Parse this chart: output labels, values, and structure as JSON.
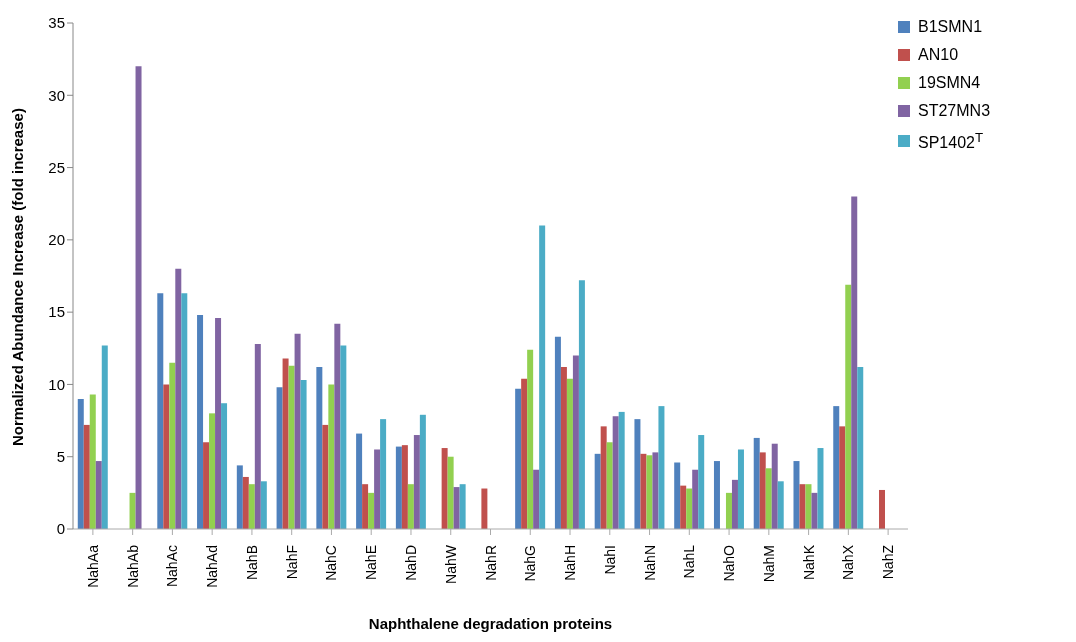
{
  "chart_data": {
    "type": "bar",
    "xlabel": "Naphthalene degradation proteins",
    "ylabel": "Normalized Abundance Increase (fold increase)",
    "categories": [
      "NahAa",
      "NahAb",
      "NahAc",
      "NahAd",
      "NahB",
      "NahF",
      "NahC",
      "NahE",
      "NahD",
      "NahW",
      "NahR",
      "NahG",
      "NahH",
      "NahI",
      "NahN",
      "NahL",
      "NahO",
      "NahM",
      "NahK",
      "NahX",
      "NahZ"
    ],
    "series": [
      {
        "name": "B1SMN1",
        "color": "#4f81bd",
        "values": [
          9.0,
          null,
          16.3,
          14.8,
          4.4,
          9.8,
          11.2,
          6.6,
          5.7,
          null,
          null,
          9.7,
          13.3,
          5.2,
          7.6,
          4.6,
          4.7,
          6.3,
          4.7,
          8.5,
          null
        ]
      },
      {
        "name": "AN10",
        "color": "#c0504d",
        "values": [
          7.2,
          null,
          10.0,
          6.0,
          3.6,
          11.8,
          7.2,
          3.1,
          5.8,
          5.6,
          2.8,
          10.4,
          11.2,
          7.1,
          5.2,
          3.0,
          null,
          5.3,
          3.1,
          7.1,
          2.7
        ]
      },
      {
        "name": "19SMN4",
        "color": "#92d050",
        "values": [
          9.3,
          2.5,
          11.5,
          8.0,
          3.1,
          11.3,
          10.0,
          2.5,
          3.1,
          5.0,
          null,
          12.4,
          10.4,
          6.0,
          5.1,
          2.8,
          2.5,
          4.2,
          3.1,
          16.9,
          null
        ]
      },
      {
        "name": "ST27MN3",
        "color": "#8064a2",
        "values": [
          4.7,
          32.0,
          18.0,
          14.6,
          12.8,
          13.5,
          14.2,
          5.5,
          6.5,
          2.9,
          null,
          4.1,
          12.0,
          7.8,
          5.3,
          4.1,
          3.4,
          5.9,
          2.5,
          23.0,
          null
        ]
      },
      {
        "name": "SP1402$^{T}$",
        "color": "#4bacc6",
        "values": [
          12.7,
          null,
          16.3,
          8.7,
          3.3,
          10.3,
          12.7,
          7.6,
          7.9,
          3.1,
          null,
          21.0,
          17.2,
          8.1,
          8.5,
          6.5,
          5.5,
          3.3,
          5.6,
          11.2,
          null
        ]
      }
    ],
    "ylim": [
      0,
      35
    ],
    "yticks": [
      0,
      5,
      10,
      15,
      20,
      25,
      30,
      35
    ],
    "grid": false,
    "legend": "top right"
  }
}
